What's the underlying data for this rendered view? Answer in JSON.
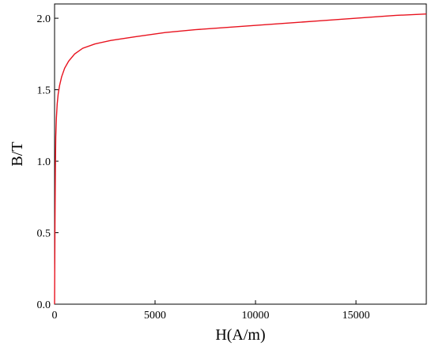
{
  "chart_data": {
    "type": "line",
    "title": "",
    "xlabel": "H(A/m)",
    "ylabel": "B/T",
    "xlim": [
      0,
      18500
    ],
    "ylim": [
      0,
      2.1
    ],
    "x_ticks": [
      0,
      5000,
      10000,
      15000
    ],
    "y_ticks": [
      0.0,
      0.5,
      1.0,
      1.5,
      2.0
    ],
    "x_tick_labels": [
      "0",
      "5000",
      "10000",
      "15000"
    ],
    "y_tick_labels": [
      "0.0",
      "0.5",
      "1.0",
      "1.5",
      "2.0"
    ],
    "grid": false,
    "legend": "none",
    "line_color": "#e8121e",
    "series": [
      {
        "x": [
          0,
          20,
          40,
          60,
          90,
          130,
          180,
          250,
          350,
          500,
          700,
          1000,
          1400,
          2000,
          2800,
          4000,
          5500,
          7000,
          9000,
          11000,
          13000,
          15000,
          17000,
          18500
        ],
        "y": [
          0.0,
          0.55,
          0.95,
          1.17,
          1.3,
          1.4,
          1.47,
          1.53,
          1.59,
          1.65,
          1.7,
          1.75,
          1.79,
          1.82,
          1.845,
          1.87,
          1.9,
          1.92,
          1.94,
          1.96,
          1.98,
          2.0,
          2.02,
          2.03
        ]
      }
    ]
  }
}
